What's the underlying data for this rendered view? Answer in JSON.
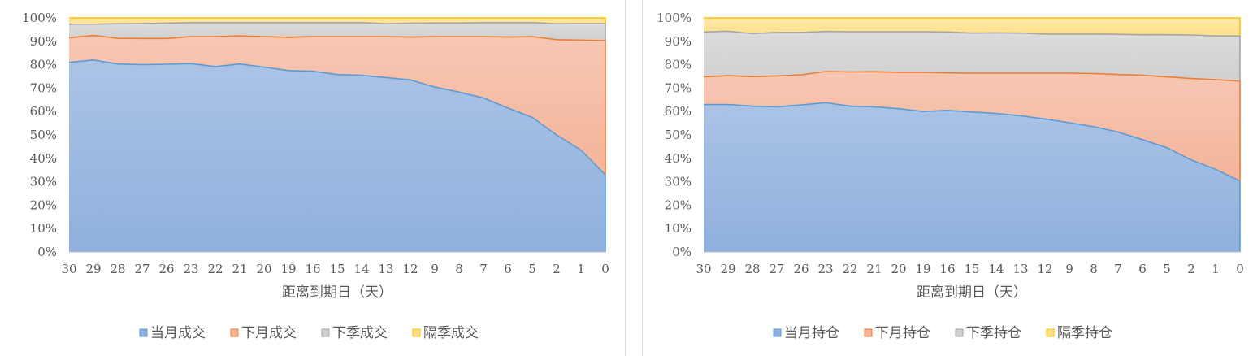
{
  "charts": {
    "chart_data": [
      {
        "type": "area",
        "stacked": "percent",
        "xlabel": "距离到期日（天）",
        "ylabel": "",
        "ylim": [
          0,
          100
        ],
        "y_ticks": [
          "0%",
          "10%",
          "20%",
          "30%",
          "40%",
          "50%",
          "60%",
          "70%",
          "80%",
          "90%",
          "100%"
        ],
        "categories": [
          "30",
          "29",
          "28",
          "27",
          "26",
          "23",
          "22",
          "21",
          "20",
          "19",
          "16",
          "15",
          "14",
          "13",
          "12",
          "9",
          "8",
          "7",
          "6",
          "5",
          "2",
          "1",
          "0"
        ],
        "legend_position": "bottom",
        "series": [
          {
            "name": "当月成交",
            "color": "#8FB0DD",
            "line_color": "#5B9BD5",
            "values": [
              81,
              82,
              80.3,
              80,
              80.2,
              80.5,
              79.2,
              80.3,
              79,
              77.5,
              77.2,
              75.8,
              75.5,
              74.5,
              73.5,
              70.5,
              68.3,
              65.8,
              61.5,
              57.5,
              50,
              43.5,
              33
            ]
          },
          {
            "name": "下月成交",
            "color": "#F4B49A",
            "line_color": "#ED7D31",
            "values": [
              10.5,
              10.5,
              11,
              11.2,
              11,
              11.5,
              12.8,
              12,
              13,
              14.2,
              14.8,
              16.2,
              16.5,
              17.5,
              18.3,
              21.5,
              23.7,
              26.2,
              30.3,
              34.5,
              40.7,
              47,
              57.3
            ]
          },
          {
            "name": "下季成交",
            "color": "#D0D0D0",
            "line_color": "#A5A5A5",
            "values": [
              5.8,
              4.8,
              6.2,
              6.4,
              6.5,
              6.0,
              6.0,
              5.7,
              6.0,
              6.3,
              6.0,
              6.0,
              6.0,
              5.5,
              5.9,
              5.8,
              5.8,
              6.0,
              6.2,
              6.0,
              6.8,
              7.1,
              7.3
            ]
          },
          {
            "name": "隔季成交",
            "color": "#FFE08A",
            "line_color": "#FFC000",
            "values": [
              2.7,
              2.7,
              2.5,
              2.4,
              2.3,
              2.0,
              2.0,
              2.0,
              2.0,
              2.0,
              2.0,
              2.0,
              2.0,
              2.5,
              2.3,
              2.2,
              2.2,
              2.0,
              2.0,
              2.0,
              2.5,
              2.4,
              2.4
            ]
          }
        ]
      },
      {
        "type": "area",
        "stacked": "percent",
        "xlabel": "距离到期日（天）",
        "ylabel": "",
        "ylim": [
          0,
          100
        ],
        "y_ticks": [
          "0%",
          "10%",
          "20%",
          "30%",
          "40%",
          "50%",
          "60%",
          "70%",
          "80%",
          "90%",
          "100%"
        ],
        "categories": [
          "30",
          "29",
          "28",
          "27",
          "26",
          "23",
          "22",
          "21",
          "20",
          "19",
          "16",
          "15",
          "14",
          "13",
          "12",
          "9",
          "8",
          "7",
          "6",
          "5",
          "2",
          "1",
          "0"
        ],
        "legend_position": "bottom",
        "series": [
          {
            "name": "当月持仓",
            "color": "#8FB0DD",
            "line_color": "#5B9BD5",
            "values": [
              63,
              63,
              62.3,
              62,
              62.8,
              63.8,
              62.3,
              62,
              61.2,
              60,
              60.5,
              59.8,
              59.2,
              58.2,
              56.8,
              55.2,
              53.5,
              51.2,
              48,
              44.5,
              39.3,
              35.3,
              30.3
            ]
          },
          {
            "name": "下月持仓",
            "color": "#F4B49A",
            "line_color": "#ED7D31",
            "values": [
              11.8,
              12.3,
              12.6,
              13.2,
              12.9,
              13.3,
              14.6,
              15,
              15.5,
              16.7,
              16,
              16.6,
              17.2,
              18.2,
              19.6,
              21.2,
              22.7,
              24.6,
              27.5,
              30.3,
              34.8,
              38.3,
              42.7
            ]
          },
          {
            "name": "下季持仓",
            "color": "#D0D0D0",
            "line_color": "#A5A5A5",
            "values": [
              19.2,
              19,
              18.4,
              18.6,
              18.1,
              17.1,
              17.2,
              17.1,
              17.4,
              17.4,
              17.5,
              17.1,
              17.2,
              17.1,
              16.7,
              16.7,
              16.9,
              17.2,
              17.3,
              18.0,
              18.6,
              18.7,
              19.3
            ]
          },
          {
            "name": "隔季持仓",
            "color": "#FFE08A",
            "line_color": "#FFC000",
            "values": [
              6.0,
              5.7,
              6.7,
              6.2,
              6.2,
              5.8,
              5.9,
              5.9,
              5.9,
              5.9,
              6.0,
              6.5,
              6.4,
              6.5,
              6.9,
              6.9,
              6.9,
              7.0,
              7.2,
              7.2,
              7.3,
              7.7,
              7.7
            ]
          }
        ]
      }
    ]
  }
}
